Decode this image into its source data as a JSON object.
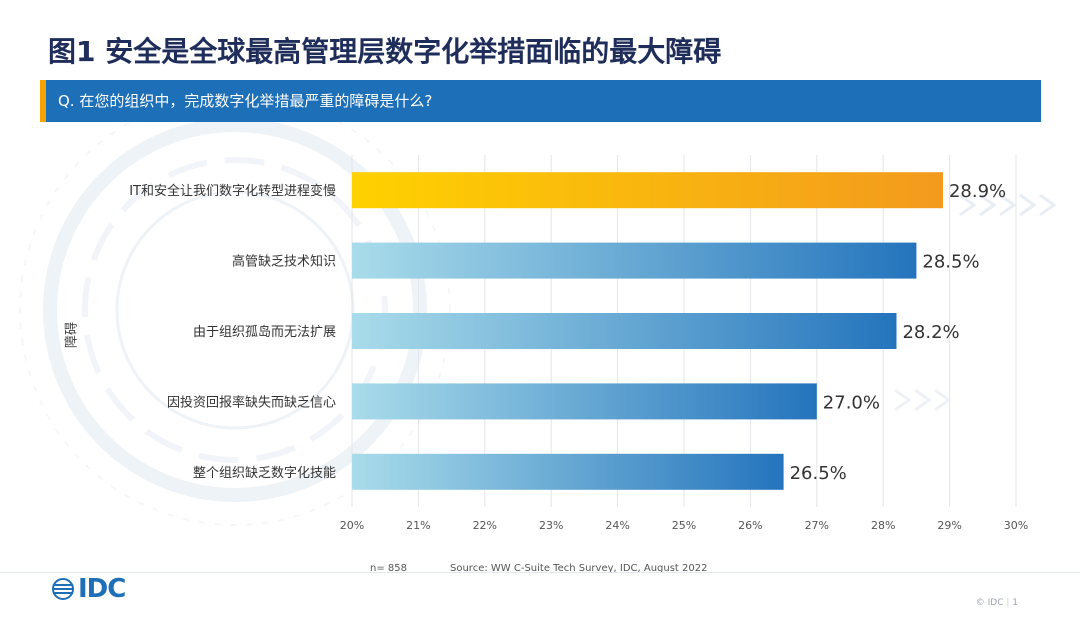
{
  "title": "图1 安全是全球最高管理层数字化举措面临的最大障碍",
  "question": "Q. 在您的组织中，完成数字化举措最严重的障碍是什么?",
  "footer": {
    "n": "n= 858",
    "source": "Source: WW C-Suite Tech Survey, IDC, August 2022"
  },
  "brand": {
    "logo_text": "IDC",
    "corner_text": "© IDC",
    "page_number": "1"
  },
  "colors": {
    "title": "#1f2d5a",
    "question_bar": "#1d6fb8",
    "highlight_start": "#ffd100",
    "highlight_end": "#f39a1e",
    "bar_start": "#a9dcea",
    "bar_end": "#2474bd"
  },
  "chart_data": {
    "type": "bar",
    "orientation": "horizontal",
    "ylabel": "障碍",
    "xlabel": "",
    "categories": [
      "IT和安全让我们数字化转型进程变慢",
      "高管缺乏技术知识",
      "由于组织孤岛而无法扩展",
      "因投资回报率缺失而缺乏信心",
      "整个组织缺乏数字化技能"
    ],
    "values": [
      28.9,
      28.5,
      28.2,
      27.0,
      26.5
    ],
    "value_labels": [
      "28.9%",
      "28.5%",
      "28.2%",
      "27.0%",
      "26.5%"
    ],
    "highlight_index": 0,
    "xlim": [
      20,
      30
    ],
    "x_ticks": [
      20,
      21,
      22,
      23,
      24,
      25,
      26,
      27,
      28,
      29,
      30
    ],
    "x_tick_labels": [
      "20%",
      "21%",
      "22%",
      "23%",
      "24%",
      "25%",
      "26%",
      "27%",
      "28%",
      "29%",
      "30%"
    ],
    "grid": "vertical"
  }
}
